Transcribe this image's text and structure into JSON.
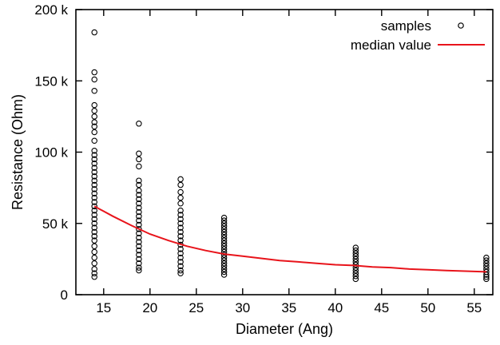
{
  "chart_data": {
    "type": "scatter",
    "xlabel": "Diameter (Ang)",
    "ylabel": "Resistance (Ohm)",
    "xlim": [
      12,
      57
    ],
    "ylim": [
      0,
      200000
    ],
    "x_ticks": [
      15,
      20,
      25,
      30,
      35,
      40,
      45,
      50,
      55
    ],
    "y_ticks": [
      0,
      50000,
      100000,
      150000,
      200000
    ],
    "y_tick_labels": [
      "0",
      "50 k",
      "100 k",
      "150 k",
      "200 k"
    ],
    "grid": false,
    "legend_position": "top-right",
    "colors": {
      "median": "#e8141b",
      "samples": "#000000",
      "axis": "#000000"
    },
    "series": [
      {
        "name": "samples",
        "kind": "scatter",
        "marker": "open-circle",
        "points": [
          [
            14,
            184000
          ],
          [
            14,
            156000
          ],
          [
            14,
            151000
          ],
          [
            14,
            143000
          ],
          [
            14,
            133000
          ],
          [
            14,
            129000
          ],
          [
            14,
            125000
          ],
          [
            14,
            121000
          ],
          [
            14,
            118000
          ],
          [
            14,
            114000
          ],
          [
            14,
            108000
          ],
          [
            14,
            101000
          ],
          [
            14,
            98000
          ],
          [
            14,
            95000
          ],
          [
            14,
            92000
          ],
          [
            14,
            89000
          ],
          [
            14,
            86000
          ],
          [
            14,
            83000
          ],
          [
            14,
            80000
          ],
          [
            14,
            77000
          ],
          [
            14,
            74000
          ],
          [
            14,
            71000
          ],
          [
            14,
            68000
          ],
          [
            14,
            65000
          ],
          [
            14,
            62000
          ],
          [
            14,
            59000
          ],
          [
            14,
            56000
          ],
          [
            14,
            53000
          ],
          [
            14,
            50000
          ],
          [
            14,
            47000
          ],
          [
            14,
            44000
          ],
          [
            14,
            41000
          ],
          [
            14,
            38000
          ],
          [
            14,
            34000
          ],
          [
            14,
            30000
          ],
          [
            14,
            26000
          ],
          [
            14,
            22000
          ],
          [
            14,
            18000
          ],
          [
            14,
            15000
          ],
          [
            14,
            12500
          ],
          [
            18.8,
            120000
          ],
          [
            18.8,
            99000
          ],
          [
            18.8,
            95000
          ],
          [
            18.8,
            90000
          ],
          [
            18.8,
            80000
          ],
          [
            18.8,
            77000
          ],
          [
            18.8,
            73000
          ],
          [
            18.8,
            70000
          ],
          [
            18.8,
            67000
          ],
          [
            18.8,
            64000
          ],
          [
            18.8,
            61000
          ],
          [
            18.8,
            58000
          ],
          [
            18.8,
            55000
          ],
          [
            18.8,
            52000
          ],
          [
            18.8,
            49000
          ],
          [
            18.8,
            46000
          ],
          [
            18.8,
            43000
          ],
          [
            18.8,
            40000
          ],
          [
            18.8,
            37000
          ],
          [
            18.8,
            34000
          ],
          [
            18.8,
            31000
          ],
          [
            18.8,
            28000
          ],
          [
            18.8,
            25000
          ],
          [
            18.8,
            22000
          ],
          [
            18.8,
            19000
          ],
          [
            18.8,
            17000
          ],
          [
            23.3,
            81000
          ],
          [
            23.3,
            77000
          ],
          [
            23.3,
            72000
          ],
          [
            23.3,
            68000
          ],
          [
            23.3,
            64000
          ],
          [
            23.3,
            59000
          ],
          [
            23.3,
            56000
          ],
          [
            23.3,
            53000
          ],
          [
            23.3,
            50000
          ],
          [
            23.3,
            47000
          ],
          [
            23.3,
            44000
          ],
          [
            23.3,
            41000
          ],
          [
            23.3,
            38000
          ],
          [
            23.3,
            35000
          ],
          [
            23.3,
            32000
          ],
          [
            23.3,
            29000
          ],
          [
            23.3,
            26000
          ],
          [
            23.3,
            23000
          ],
          [
            23.3,
            20000
          ],
          [
            23.3,
            17000
          ],
          [
            23.3,
            15000
          ],
          [
            28,
            54000
          ],
          [
            28,
            52000
          ],
          [
            28,
            50000
          ],
          [
            28,
            48000
          ],
          [
            28,
            46000
          ],
          [
            28,
            44000
          ],
          [
            28,
            42000
          ],
          [
            28,
            40000
          ],
          [
            28,
            38000
          ],
          [
            28,
            36000
          ],
          [
            28,
            34000
          ],
          [
            28,
            32000
          ],
          [
            28,
            30000
          ],
          [
            28,
            28000
          ],
          [
            28,
            26000
          ],
          [
            28,
            24000
          ],
          [
            28,
            22000
          ],
          [
            28,
            20000
          ],
          [
            28,
            18000
          ],
          [
            28,
            16000
          ],
          [
            28,
            14000
          ],
          [
            42.2,
            33000
          ],
          [
            42.2,
            31000
          ],
          [
            42.2,
            29000
          ],
          [
            42.2,
            27000
          ],
          [
            42.2,
            25000
          ],
          [
            42.2,
            23000
          ],
          [
            42.2,
            21000
          ],
          [
            42.2,
            19000
          ],
          [
            42.2,
            17000
          ],
          [
            42.2,
            15000
          ],
          [
            42.2,
            13000
          ],
          [
            42.2,
            11000
          ],
          [
            56.3,
            26000
          ],
          [
            56.3,
            24000
          ],
          [
            56.3,
            22000
          ],
          [
            56.3,
            20000
          ],
          [
            56.3,
            18000
          ],
          [
            56.3,
            16000
          ],
          [
            56.3,
            14000
          ],
          [
            56.3,
            12500
          ],
          [
            56.3,
            11000
          ]
        ]
      },
      {
        "name": "median value",
        "kind": "line",
        "points": [
          [
            14,
            62000
          ],
          [
            16,
            55000
          ],
          [
            18,
            48500
          ],
          [
            20,
            42500
          ],
          [
            22,
            38000
          ],
          [
            24,
            34000
          ],
          [
            26,
            31000
          ],
          [
            28,
            28500
          ],
          [
            30,
            27000
          ],
          [
            32,
            25500
          ],
          [
            34,
            24000
          ],
          [
            36,
            23000
          ],
          [
            38,
            22000
          ],
          [
            40,
            21000
          ],
          [
            42,
            20500
          ],
          [
            44,
            19500
          ],
          [
            46,
            19000
          ],
          [
            48,
            18000
          ],
          [
            50,
            17500
          ],
          [
            52,
            17000
          ],
          [
            54,
            16500
          ],
          [
            56.3,
            16000
          ]
        ]
      }
    ]
  }
}
